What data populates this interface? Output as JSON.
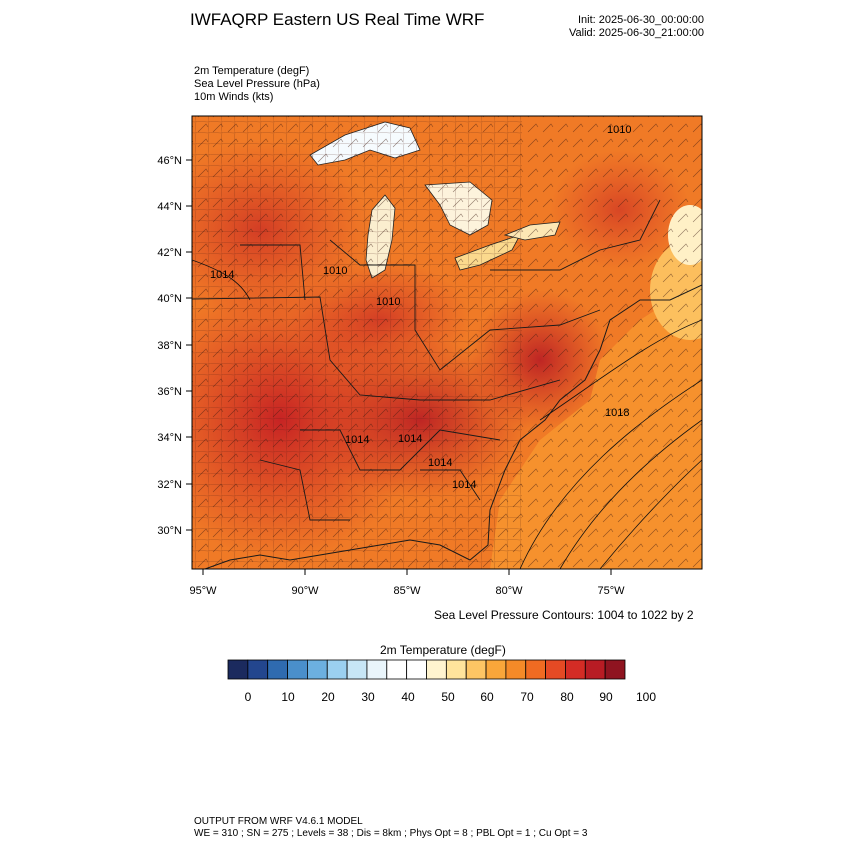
{
  "header": {
    "title": "IWFAQRP Eastern US Real Time WRF",
    "init": "Init: 2025-06-30_00:00:00",
    "valid": "Valid: 2025-06-30_21:00:00"
  },
  "fields": [
    "2m Temperature   (degF)",
    "Sea Level Pressure   (hPa)",
    "10m Winds   (kts)"
  ],
  "map": {
    "lat_labels": [
      "46°N",
      "44°N",
      "42°N",
      "40°N",
      "38°N",
      "36°N",
      "34°N",
      "32°N",
      "30°N"
    ],
    "lon_labels": [
      "95°W",
      "90°W",
      "85°W",
      "80°W",
      "75°W"
    ],
    "pressure_labels": [
      "1010",
      "1014",
      "1010",
      "1010",
      "1018",
      "1014",
      "1014",
      "1014",
      "1014"
    ],
    "contour_note": "Sea Level Pressure Contours: 1004 to 1022 by 2"
  },
  "colorbar": {
    "title": "2m Temperature  (degF)",
    "labels": [
      "0",
      "10",
      "20",
      "30",
      "40",
      "50",
      "60",
      "70",
      "80",
      "90",
      "100"
    ],
    "colors": [
      "#1b2a5e",
      "#23468e",
      "#2f6bb0",
      "#4a8fcb",
      "#6cb0e0",
      "#9bd0f0",
      "#c7e6f6",
      "#e9f5fb",
      "#ffffff",
      "#ffffff",
      "#fff4cf",
      "#ffe49c",
      "#fdc564",
      "#f9a63a",
      "#f58a28",
      "#f06b22",
      "#e54a24",
      "#d42c25",
      "#b81c24",
      "#8f1420"
    ]
  },
  "footer": {
    "line1": "OUTPUT FROM WRF V4.6.1 MODEL",
    "line2": "WE = 310 ; SN = 275 ; Levels = 38 ; Dis = 8km ; Phys Opt = 8 ; PBL Opt = 1 ; Cu Opt = 3"
  }
}
